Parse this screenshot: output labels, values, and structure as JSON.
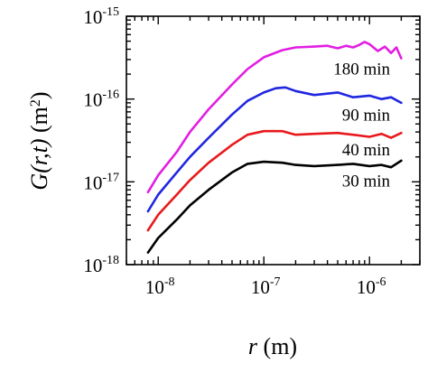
{
  "chart_data": {
    "type": "line",
    "xlabel_symbol": "r",
    "xlabel_unit": "(m)",
    "ylabel_func": "G",
    "ylabel_args": "(r,t)",
    "ylabel_unit": "(m",
    "ylabel_unit_exp": "2",
    "ylabel_close": ")",
    "x_scale": "log",
    "y_scale": "log",
    "xlim": [
      5e-09,
      3e-06
    ],
    "ylim": [
      1e-18,
      1e-15
    ],
    "grid": false,
    "x_ticks": [
      {
        "value": 1e-08,
        "base": "10",
        "exp": "-8"
      },
      {
        "value": 1e-07,
        "base": "10",
        "exp": "-7"
      },
      {
        "value": 1e-06,
        "base": "10",
        "exp": "-6"
      }
    ],
    "y_ticks": [
      {
        "value": 1e-18,
        "base": "10",
        "exp": "-18"
      },
      {
        "value": 1e-17,
        "base": "10",
        "exp": "-17"
      },
      {
        "value": 1e-16,
        "base": "10",
        "exp": "-16"
      },
      {
        "value": 1e-15,
        "base": "10",
        "exp": "-15"
      }
    ],
    "series": [
      {
        "name": "30 min",
        "color": "#000000",
        "x": [
          8e-09,
          1e-08,
          1.5e-08,
          2e-08,
          3e-08,
          5e-08,
          7e-08,
          1e-07,
          1.5e-07,
          2e-07,
          3e-07,
          5e-07,
          7e-07,
          1e-06,
          1.3e-06,
          1.6e-06,
          2e-06
        ],
        "y": [
          1.4e-18,
          2.1e-18,
          3.5e-18,
          5.2e-18,
          8e-18,
          1.3e-17,
          1.65e-17,
          1.75e-17,
          1.7e-17,
          1.6e-17,
          1.55e-17,
          1.6e-17,
          1.65e-17,
          1.55e-17,
          1.6e-17,
          1.5e-17,
          1.8e-17
        ]
      },
      {
        "name": "40 min",
        "color": "#e8191c",
        "x": [
          8e-09,
          1e-08,
          1.5e-08,
          2e-08,
          3e-08,
          5e-08,
          7e-08,
          1e-07,
          1.5e-07,
          2e-07,
          3e-07,
          5e-07,
          7e-07,
          1e-06,
          1.3e-06,
          1.6e-06,
          2e-06
        ],
        "y": [
          2.6e-18,
          4e-18,
          7e-18,
          1.05e-17,
          1.7e-17,
          2.8e-17,
          3.7e-17,
          4.1e-17,
          4.1e-17,
          3.7e-17,
          3.8e-17,
          3.9e-17,
          3.7e-17,
          3.5e-17,
          3.8e-17,
          3.4e-17,
          3.9e-17
        ]
      },
      {
        "name": "90 min",
        "color": "#1f26e0",
        "x": [
          8e-09,
          1e-08,
          1.5e-08,
          2e-08,
          3e-08,
          5e-08,
          7e-08,
          1e-07,
          1.3e-07,
          1.6e-07,
          2e-07,
          3e-07,
          5e-07,
          7e-07,
          1e-06,
          1.3e-06,
          1.6e-06,
          2e-06
        ],
        "y": [
          4.4e-18,
          7e-18,
          1.3e-17,
          2e-17,
          3.4e-17,
          6.5e-17,
          9.5e-17,
          1.2e-16,
          1.35e-16,
          1.38e-16,
          1.25e-16,
          1.12e-16,
          1.2e-16,
          1.05e-16,
          1.1e-16,
          1e-16,
          1.05e-16,
          9e-17
        ]
      },
      {
        "name": "180 min",
        "color": "#e21ee2",
        "x": [
          8e-09,
          1e-08,
          1.5e-08,
          2e-08,
          3e-08,
          5e-08,
          7e-08,
          1e-07,
          1.5e-07,
          2e-07,
          3e-07,
          4e-07,
          5e-07,
          6e-07,
          7e-07,
          8e-07,
          9e-07,
          1e-06,
          1.2e-06,
          1.4e-06,
          1.6e-06,
          1.8e-06,
          2e-06
        ],
        "y": [
          7.5e-18,
          1.2e-17,
          2.3e-17,
          4e-17,
          7.5e-17,
          1.5e-16,
          2.3e-16,
          3.2e-16,
          3.9e-16,
          4.2e-16,
          4.3e-16,
          4.4e-16,
          4.1e-16,
          4.4e-16,
          4.2e-16,
          4.5e-16,
          4.9e-16,
          4.6e-16,
          3.8e-16,
          4.3e-16,
          3.6e-16,
          4.2e-16,
          3.1e-16
        ]
      }
    ]
  }
}
